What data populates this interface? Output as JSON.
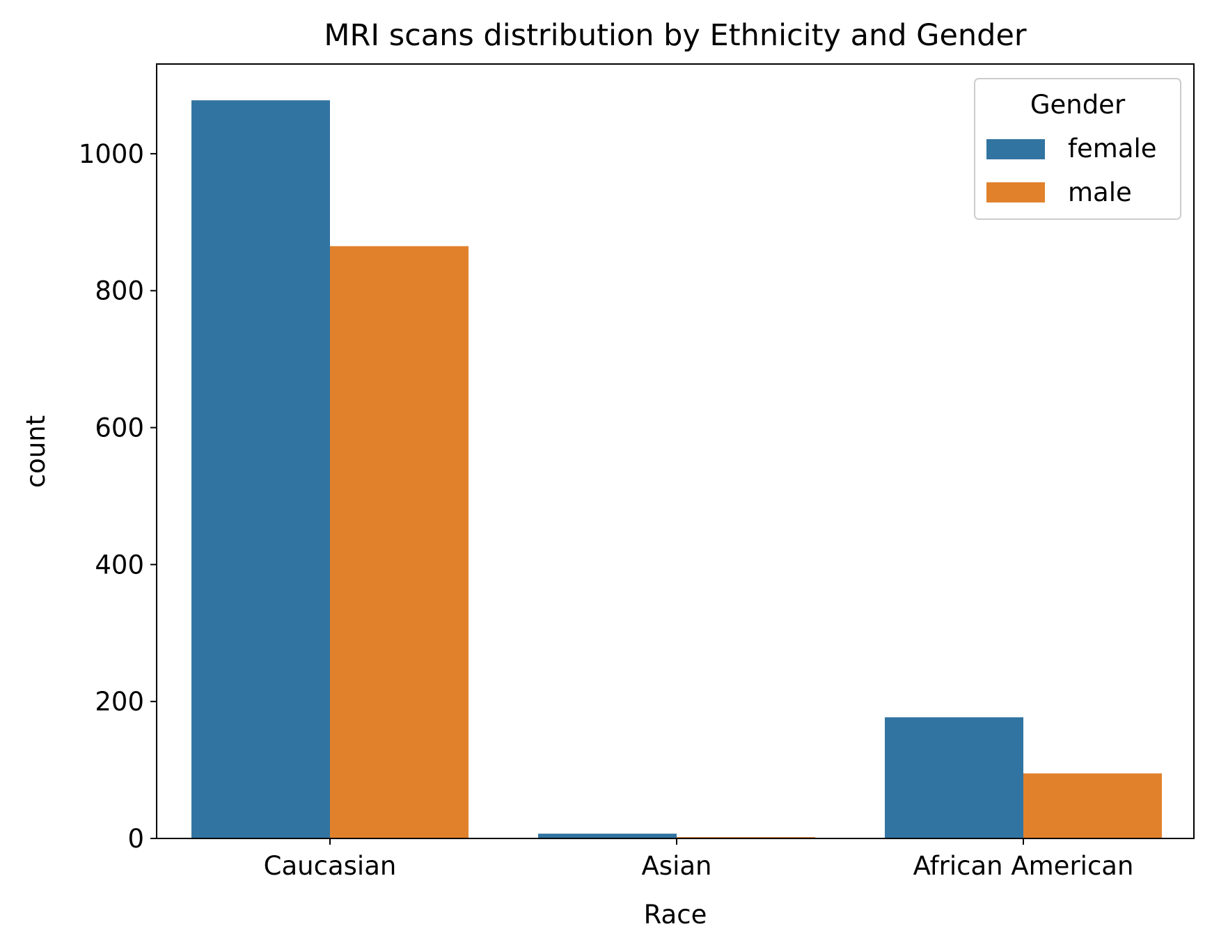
{
  "chart_data": {
    "type": "bar",
    "title": "MRI scans distribution by Ethnicity and Gender",
    "xlabel": "Race",
    "ylabel": "count",
    "categories": [
      "Caucasian",
      "Asian",
      "African American"
    ],
    "series": [
      {
        "name": "female",
        "color": "#3274a1",
        "values": [
          1078,
          7,
          177
        ]
      },
      {
        "name": "male",
        "color": "#e1812c",
        "values": [
          865,
          2,
          95
        ]
      }
    ],
    "ylim": [
      0,
      1131
    ],
    "yticks": [
      0,
      200,
      400,
      600,
      800,
      1000
    ],
    "grid": false,
    "legend": {
      "title": "Gender",
      "position": "top-right"
    }
  }
}
